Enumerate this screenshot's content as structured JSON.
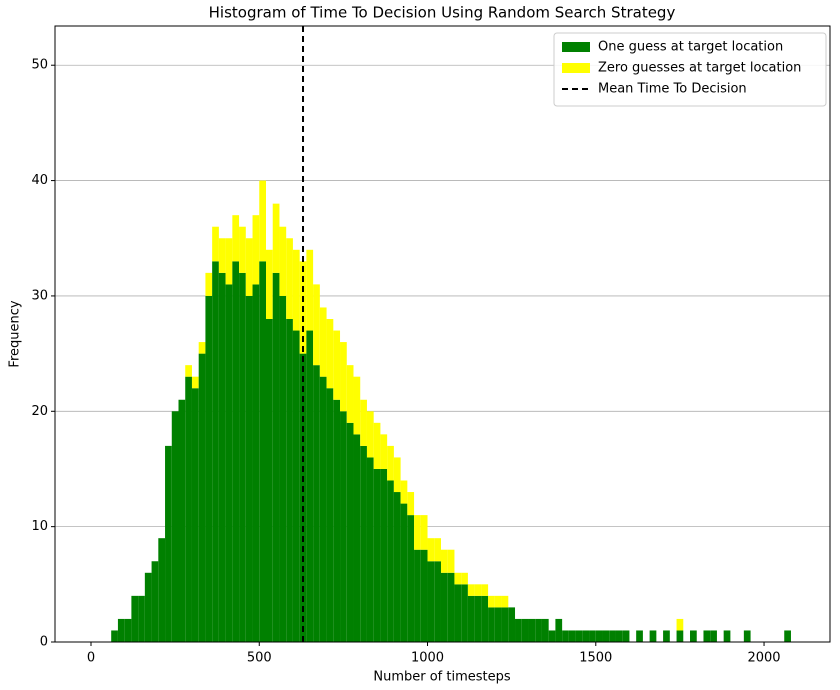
{
  "chart_data": {
    "type": "histogram",
    "title": "Histogram of Time To Decision Using Random Search Strategy",
    "x_label": "Number of timesteps",
    "y_label": "Frequency",
    "bins": [
      60,
      80,
      100,
      120,
      140,
      160,
      180,
      200,
      220,
      240,
      260,
      280,
      300,
      320,
      340,
      360,
      380,
      400,
      420,
      440,
      460,
      480,
      500,
      520,
      540,
      560,
      580,
      600,
      620,
      640,
      660,
      680,
      700,
      720,
      740,
      760,
      780,
      800,
      820,
      840,
      860,
      880,
      900,
      920,
      940,
      960,
      980,
      1000,
      1020,
      1040,
      1060,
      1080,
      1100,
      1120,
      1140,
      1160,
      1180,
      1200,
      1220,
      1240,
      1260,
      1280,
      1300,
      1320,
      1340,
      1360,
      1380,
      1400,
      1420,
      1440,
      1460,
      1480,
      1500,
      1520,
      1540,
      1560,
      1580,
      1600,
      1620,
      1640,
      1660,
      1680,
      1700,
      1720,
      1740,
      1760,
      1780,
      1800,
      1820,
      1840,
      1860,
      1880,
      1900,
      1920,
      1940,
      1960,
      1980,
      2000,
      2020,
      2040,
      2060,
      2080
    ],
    "series": [
      {
        "name": "One guess at target location",
        "color": "#008000",
        "values": [
          1,
          2,
          2,
          4,
          4,
          6,
          7,
          9,
          17,
          20,
          21,
          23,
          22,
          25,
          30,
          33,
          32,
          31,
          33,
          32,
          30,
          31,
          33,
          28,
          32,
          30,
          28,
          27,
          25,
          27,
          24,
          23,
          22,
          21,
          20,
          19,
          18,
          17,
          16,
          15,
          15,
          14,
          13,
          12,
          11,
          8,
          8,
          7,
          7,
          6,
          6,
          5,
          5,
          4,
          4,
          4,
          3,
          3,
          3,
          3,
          2,
          2,
          2,
          2,
          2,
          1,
          2,
          1,
          1,
          1,
          1,
          1,
          1,
          1,
          1,
          1,
          1,
          0,
          1,
          0,
          1,
          0,
          1,
          0,
          1,
          0,
          1,
          0,
          1,
          1,
          0,
          1,
          0,
          0,
          1,
          0,
          0,
          0,
          0,
          0,
          1
        ]
      },
      {
        "name": "Zero guesses at target location",
        "color": "#ffff00",
        "values": [
          0,
          0,
          0,
          0,
          0,
          0,
          0,
          0,
          0,
          0,
          0,
          1,
          1,
          1,
          2,
          3,
          3,
          4,
          4,
          4,
          5,
          6,
          7,
          6,
          6,
          6,
          7,
          7,
          8,
          7,
          7,
          6,
          6,
          6,
          6,
          5,
          5,
          4,
          4,
          4,
          3,
          3,
          3,
          2,
          2,
          3,
          3,
          2,
          2,
          2,
          2,
          1,
          1,
          1,
          1,
          1,
          1,
          1,
          1,
          0,
          0,
          0,
          0,
          0,
          0,
          0,
          0,
          0,
          0,
          0,
          0,
          0,
          0,
          0,
          0,
          0,
          0,
          0,
          0,
          0,
          0,
          0,
          0,
          0,
          1,
          0,
          0,
          0,
          0,
          0,
          0,
          0,
          0,
          0,
          0,
          0,
          0,
          0,
          0,
          0,
          0
        ]
      }
    ],
    "mean_line": {
      "name": "Mean Time To Decision",
      "value": 630,
      "color": "#000000"
    },
    "stacked": true,
    "xlim": [
      -107,
      2196
    ],
    "xticks": [
      0,
      500,
      1000,
      1500,
      2000
    ],
    "ylim": [
      0,
      53.4
    ],
    "yticks": [
      0,
      10,
      20,
      30,
      40,
      50
    ],
    "grid": "y",
    "legend": "upper right"
  }
}
